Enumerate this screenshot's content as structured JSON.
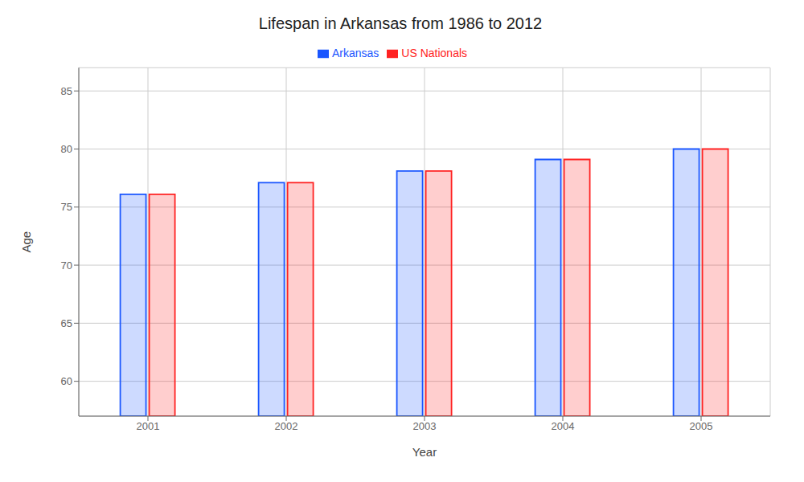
{
  "chart_data": {
    "type": "bar",
    "title": "Lifespan in Arkansas from 1986 to 2012",
    "xlabel": "Year",
    "ylabel": "Age",
    "categories": [
      "2001",
      "2002",
      "2003",
      "2004",
      "2005"
    ],
    "series": [
      {
        "name": "Arkansas",
        "color": "#1a56ff",
        "values": [
          76.1,
          77.1,
          78.1,
          79.1,
          80.0
        ]
      },
      {
        "name": "US Nationals",
        "color": "#ff2222",
        "values": [
          76.1,
          77.1,
          78.1,
          79.1,
          80.0
        ]
      }
    ],
    "ylim": [
      57,
      87
    ],
    "yticks": [
      60,
      65,
      70,
      75,
      80,
      85
    ],
    "grid": true,
    "legend": "top"
  }
}
